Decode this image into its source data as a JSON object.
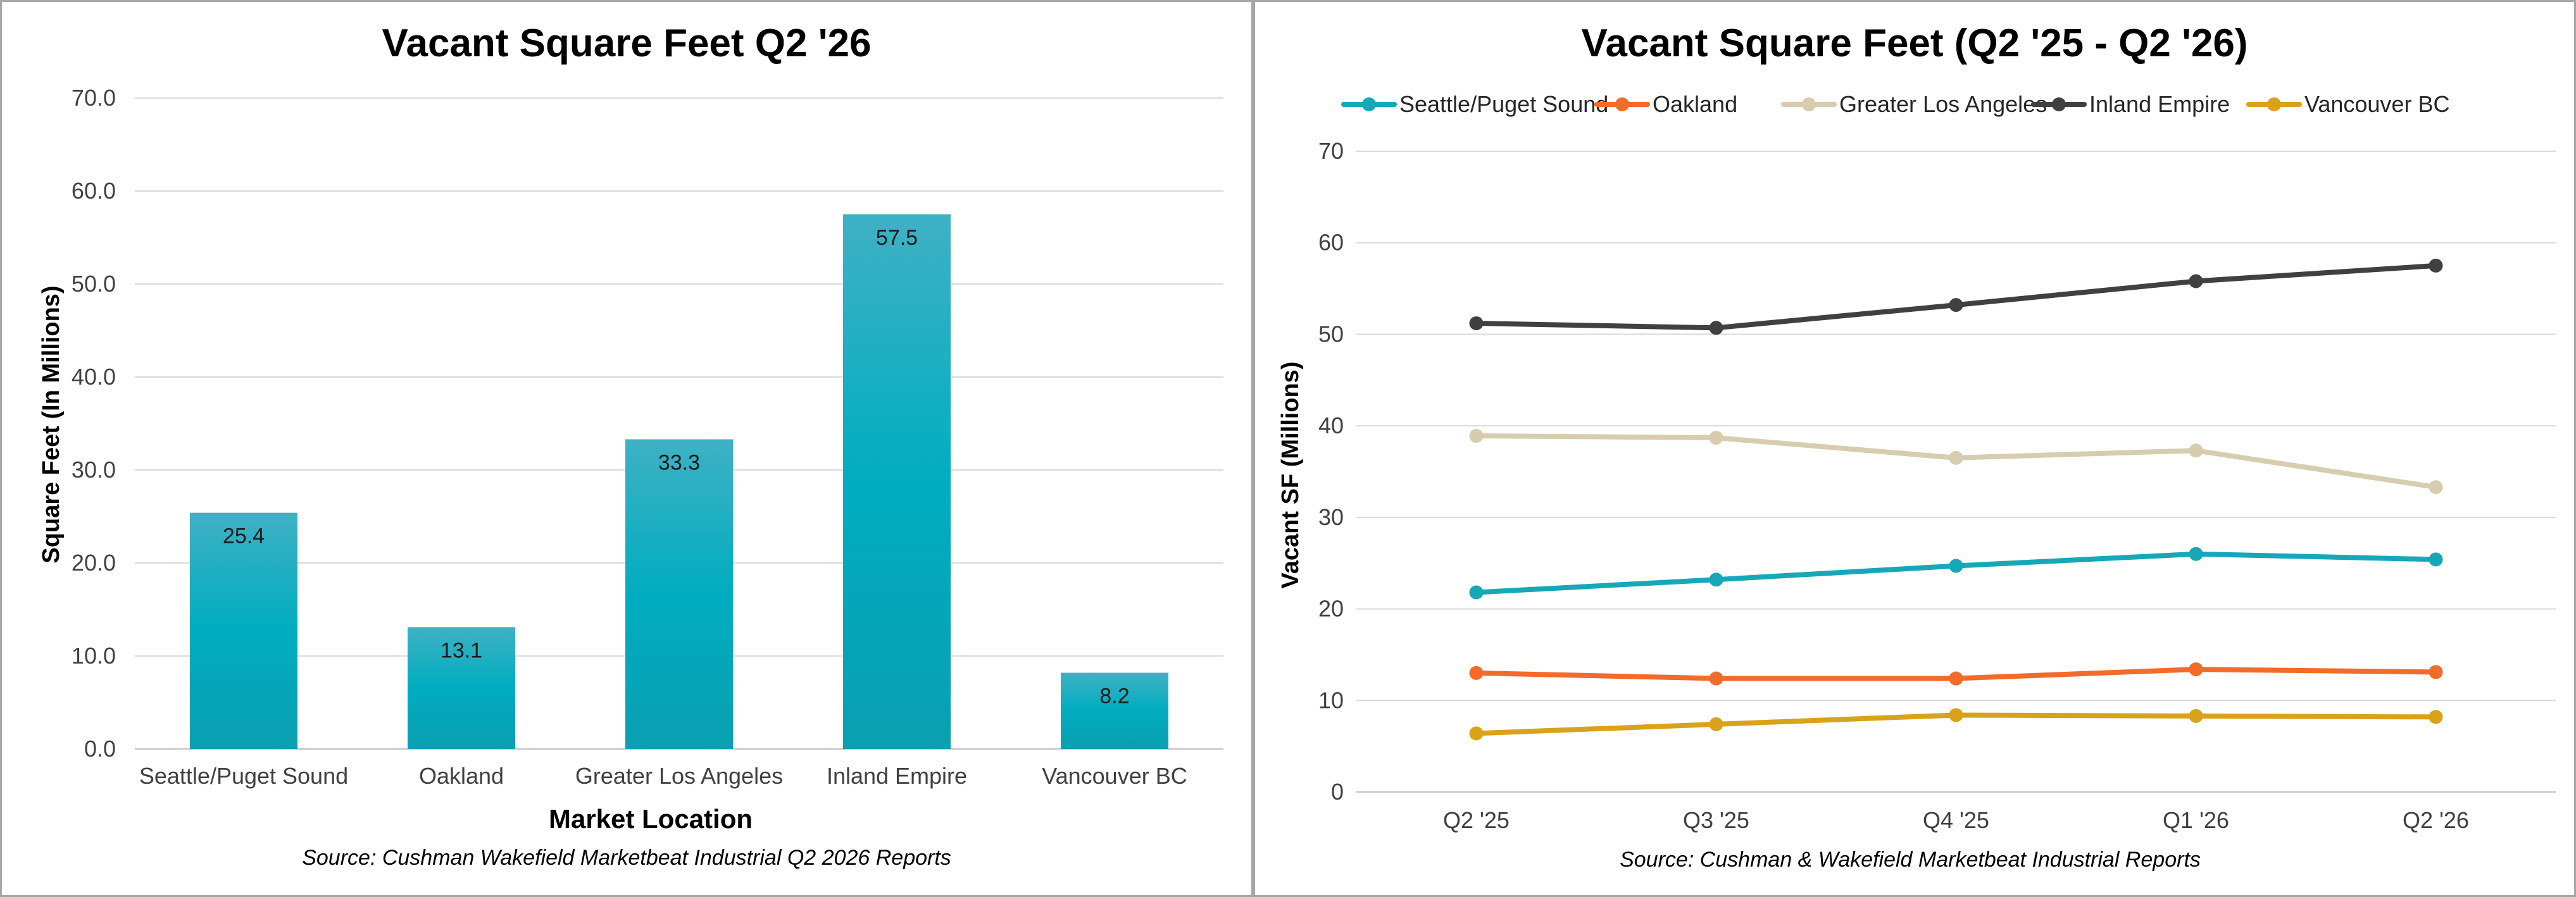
{
  "chart_data": [
    {
      "type": "bar",
      "title": "Vacant Square Feet Q2 '26",
      "xlabel": "Market Location",
      "ylabel": "Square Feet (In Millions)",
      "source": "Source: Cushman Wakefield Marketbeat Industrial Q2 2026 Reports",
      "categories": [
        "Seattle/Puget Sound",
        "Oakland",
        "Greater Los Angeles",
        "Inland Empire",
        "Vancouver BC"
      ],
      "values": [
        25.4,
        13.1,
        33.3,
        57.5,
        8.2
      ],
      "data_labels": [
        "25.4",
        "13.1",
        "33.3",
        "57.5",
        "8.2"
      ],
      "ylim": [
        0,
        70
      ],
      "yticks": [
        "0.0",
        "10.0",
        "20.0",
        "30.0",
        "40.0",
        "50.0",
        "60.0",
        "70.0"
      ],
      "grid": true,
      "legend": "none",
      "colors": {
        "bar_top": "#3fb1c4",
        "bar_mid": "#00adc0",
        "bar_bottom": "#0a9fb1"
      }
    },
    {
      "type": "line",
      "title": "Vacant Square Feet (Q2 '25 - Q2 '26)",
      "ylabel": "Vacant SF (Millions)",
      "source": "Source: Cushman & Wakefield Marketbeat Industrial Reports",
      "categories": [
        "Q2 '25",
        "Q3 '25",
        "Q4 '25",
        "Q1 '26",
        "Q2 '26"
      ],
      "ylim": [
        0,
        70
      ],
      "yticks": [
        "0",
        "10",
        "20",
        "30",
        "40",
        "50",
        "60",
        "70"
      ],
      "grid": true,
      "legend": "top",
      "series": [
        {
          "name": "Seattle/Puget Sound",
          "color": "#16a8b8",
          "values": [
            21.8,
            23.2,
            24.7,
            26.0,
            25.4
          ]
        },
        {
          "name": "Oakland",
          "color": "#f26b2a",
          "values": [
            13.0,
            12.4,
            12.4,
            13.4,
            13.1
          ]
        },
        {
          "name": "Greater Los Angeles",
          "color": "#d8ccaf",
          "values": [
            38.9,
            38.7,
            36.5,
            37.3,
            33.3
          ]
        },
        {
          "name": "Inland Empire",
          "color": "#404040",
          "values": [
            51.2,
            50.7,
            53.2,
            55.8,
            57.5
          ]
        },
        {
          "name": "Vancouver BC",
          "color": "#d9a21b",
          "values": [
            6.4,
            7.4,
            8.4,
            8.3,
            8.2
          ]
        }
      ]
    }
  ]
}
